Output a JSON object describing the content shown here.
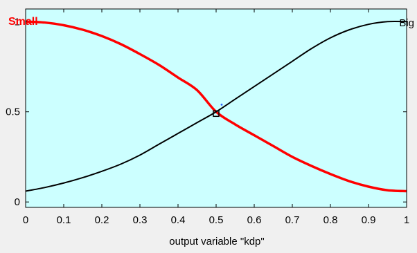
{
  "chart_data": {
    "type": "line",
    "title": "",
    "xlabel": "output variable \"kdp\"",
    "ylabel": "",
    "xlim": [
      0,
      1
    ],
    "ylim": [
      -0.03,
      1.07
    ],
    "xticks": [
      0,
      0.1,
      0.2,
      0.3,
      0.4,
      0.5,
      0.6,
      0.7,
      0.8,
      0.9,
      1
    ],
    "xtick_labels": [
      "0",
      "0.1",
      "0.2",
      "0.3",
      "0.4",
      "0.5",
      "0.6",
      "0.7",
      "0.8",
      "0.9",
      "1"
    ],
    "yticks": [
      0,
      0.5,
      1
    ],
    "ytick_labels": [
      "0",
      "0.5",
      "1"
    ],
    "grid": false,
    "background": "#ccffff",
    "series": [
      {
        "name": "Small",
        "color": "#ff0000",
        "x": [
          0,
          0.05,
          0.1,
          0.15,
          0.2,
          0.25,
          0.3,
          0.35,
          0.4,
          0.45,
          0.5,
          0.55,
          0.6,
          0.65,
          0.7,
          0.75,
          0.8,
          0.85,
          0.9,
          0.95,
          1
        ],
        "y": [
          1.0,
          0.995,
          0.98,
          0.955,
          0.92,
          0.875,
          0.82,
          0.76,
          0.69,
          0.62,
          0.5,
          0.43,
          0.37,
          0.31,
          0.25,
          0.2,
          0.155,
          0.115,
          0.085,
          0.065,
          0.06
        ]
      },
      {
        "name": "Big",
        "color": "#000000",
        "x": [
          0,
          0.05,
          0.1,
          0.15,
          0.2,
          0.25,
          0.3,
          0.35,
          0.4,
          0.45,
          0.5,
          0.55,
          0.6,
          0.65,
          0.7,
          0.75,
          0.8,
          0.85,
          0.9,
          0.95,
          1
        ],
        "y": [
          0.06,
          0.08,
          0.105,
          0.135,
          0.17,
          0.21,
          0.26,
          0.32,
          0.38,
          0.44,
          0.5,
          0.57,
          0.64,
          0.71,
          0.78,
          0.85,
          0.91,
          0.955,
          0.985,
          1.0,
          1.0
        ]
      }
    ],
    "marker": {
      "x": 0.5,
      "y": 0.49
    }
  }
}
